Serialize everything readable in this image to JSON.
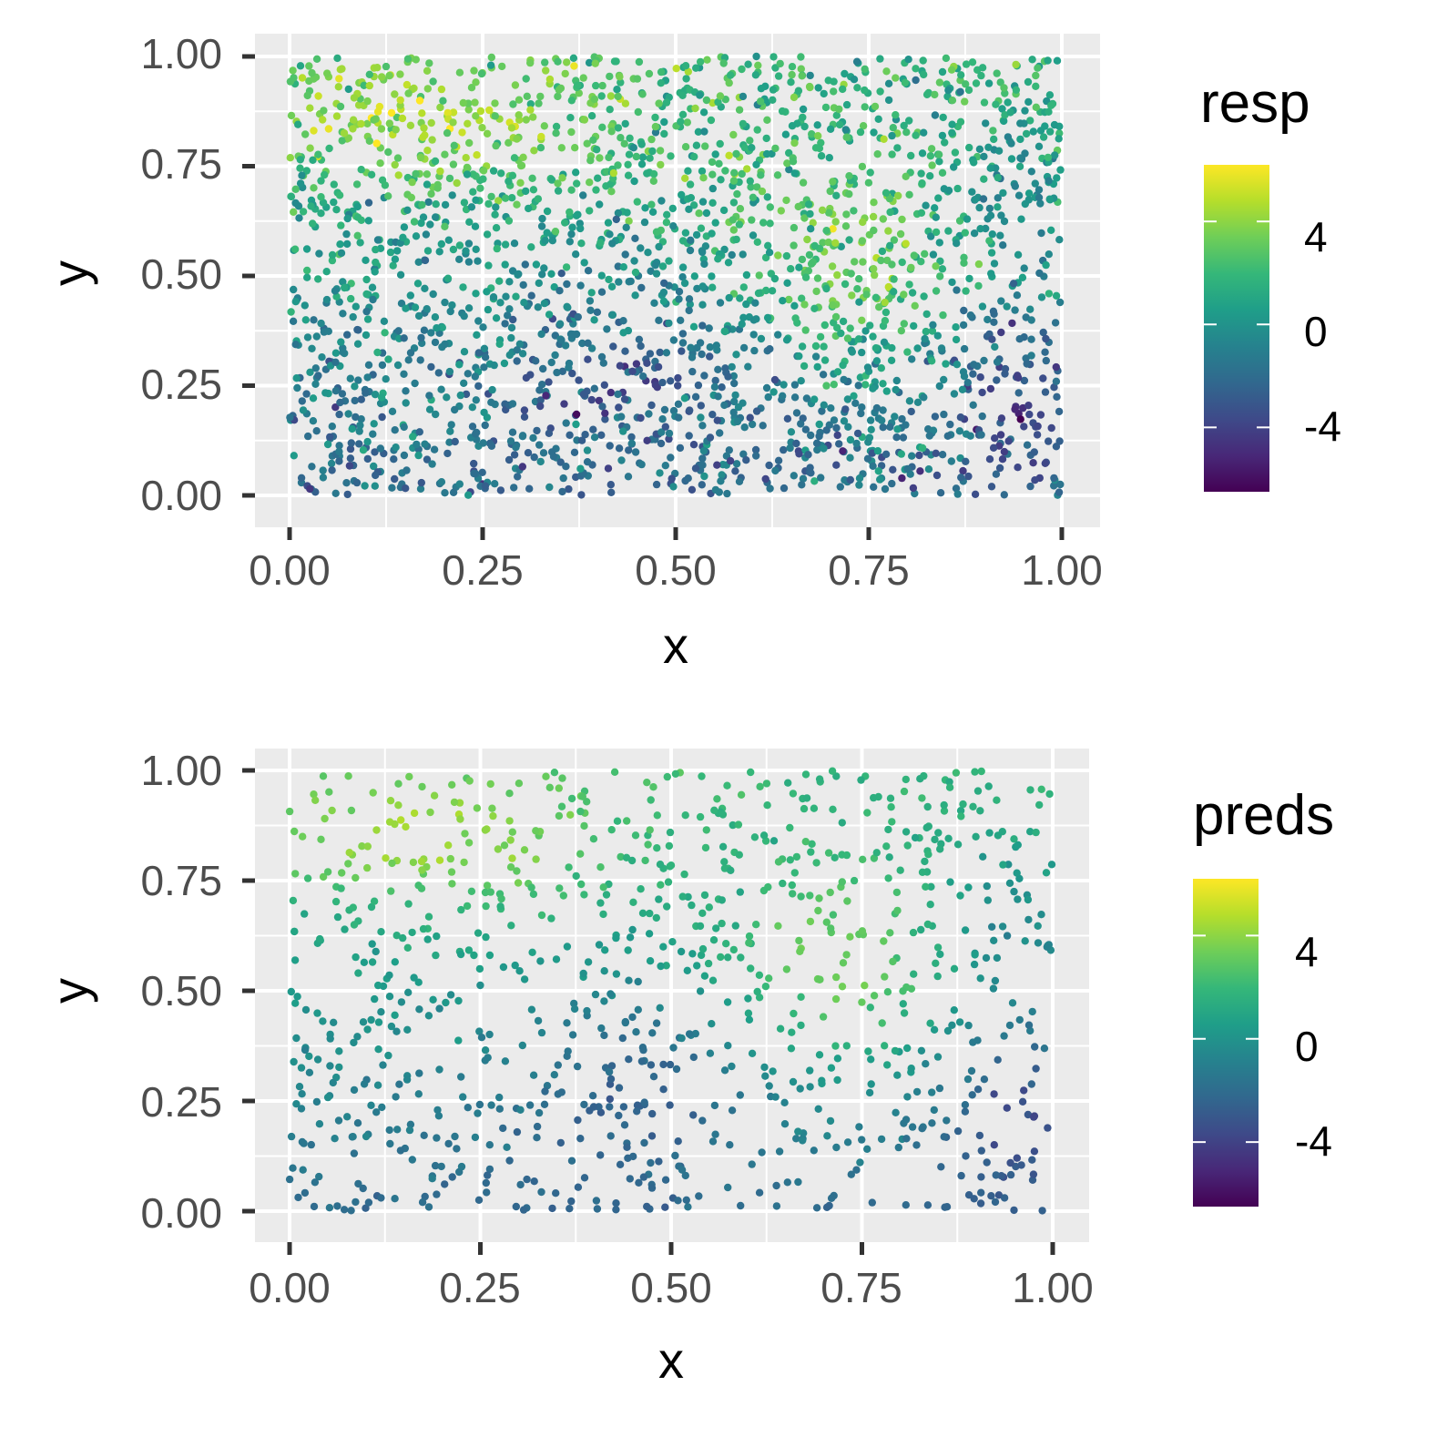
{
  "chart_data": [
    {
      "type": "scatter",
      "panel": "top",
      "title": "",
      "xlabel": "x",
      "ylabel": "y",
      "xlim": [
        0,
        1
      ],
      "ylim": [
        0,
        1
      ],
      "grid": true,
      "x_ticks": [
        "0.00",
        "0.25",
        "0.50",
        "0.75",
        "1.00"
      ],
      "y_ticks": [
        "0.00",
        "0.25",
        "0.50",
        "0.75",
        "1.00"
      ],
      "color_variable": "resp",
      "legend": {
        "title": "resp",
        "placement": "right",
        "range": [
          -6.5,
          6.2
        ],
        "labels": [
          "4",
          "0",
          "-4"
        ],
        "label_values": [
          4,
          0,
          -4
        ]
      },
      "point_count": 2500,
      "field": "resp"
    },
    {
      "type": "scatter",
      "panel": "bottom",
      "title": "",
      "xlabel": "x",
      "ylabel": "y",
      "xlim": [
        0,
        1
      ],
      "ylim": [
        0,
        1
      ],
      "grid": true,
      "x_ticks": [
        "0.00",
        "0.25",
        "0.50",
        "0.75",
        "1.00"
      ],
      "y_ticks": [
        "0.00",
        "0.25",
        "0.50",
        "0.75",
        "1.00"
      ],
      "color_variable": "preds",
      "legend": {
        "title": "preds",
        "placement": "right",
        "range": [
          -6.5,
          6.2
        ],
        "labels": [
          "4",
          "0",
          "-4"
        ],
        "label_values": [
          4,
          0,
          -4
        ]
      },
      "point_count": 1000,
      "field": "preds"
    }
  ],
  "colors": {
    "panel_background": "#ebebeb",
    "grid": "#ffffff",
    "palette": "viridis",
    "viridis": [
      "#440154",
      "#482878",
      "#3e4a89",
      "#31688e",
      "#26828e",
      "#1f9e89",
      "#35b779",
      "#6ece58",
      "#b5de2b",
      "#fde725"
    ]
  }
}
